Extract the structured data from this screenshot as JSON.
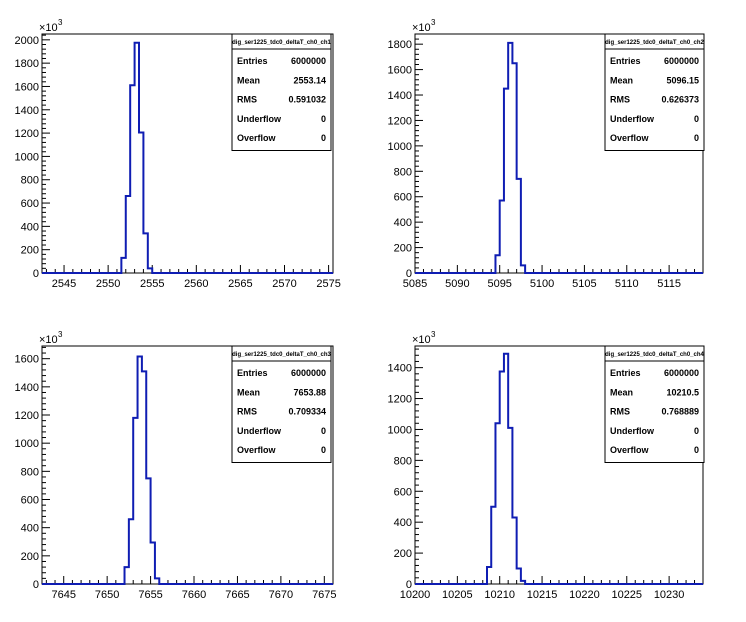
{
  "chart_data": [
    {
      "type": "histogram",
      "stats_title": "dig_ser1225_tdc0_deltaT_ch0_ch1",
      "stats": [
        {
          "label": "Entries",
          "value": "6000000"
        },
        {
          "label": "Mean",
          "value": "2553.14"
        },
        {
          "label": "RMS",
          "value": "0.591032"
        },
        {
          "label": "Underflow",
          "value": "0"
        },
        {
          "label": "Overflow",
          "value": "0"
        }
      ],
      "y_exponent_base": "×10",
      "y_exponent_power": "3",
      "xlim": [
        2542.5,
        2575.5
      ],
      "ylim": [
        0,
        2050
      ],
      "xticks": [
        2545,
        2550,
        2555,
        2560,
        2565,
        2570,
        2575
      ],
      "yticks": [
        0,
        200,
        400,
        600,
        800,
        1000,
        1200,
        1400,
        1600,
        1800,
        2000
      ],
      "bin_width": 0.5,
      "bins": [
        {
          "x0": 2551.5,
          "y": 130
        },
        {
          "x0": 2552.0,
          "y": 660
        },
        {
          "x0": 2552.5,
          "y": 1610
        },
        {
          "x0": 2553.0,
          "y": 1975
        },
        {
          "x0": 2553.5,
          "y": 1205
        },
        {
          "x0": 2554.0,
          "y": 340
        },
        {
          "x0": 2554.5,
          "y": 40
        }
      ]
    },
    {
      "type": "histogram",
      "stats_title": "dig_ser1225_tdc0_deltaT_ch0_ch2",
      "stats": [
        {
          "label": "Entries",
          "value": "6000000"
        },
        {
          "label": "Mean",
          "value": "5096.15"
        },
        {
          "label": "RMS",
          "value": "0.626373"
        },
        {
          "label": "Underflow",
          "value": "0"
        },
        {
          "label": "Overflow",
          "value": "0"
        }
      ],
      "y_exponent_base": "×10",
      "y_exponent_power": "3",
      "xlim": [
        5085,
        5119
      ],
      "ylim": [
        0,
        1880
      ],
      "xticks": [
        5085,
        5090,
        5095,
        5100,
        5105,
        5110,
        5115
      ],
      "yticks": [
        0,
        200,
        400,
        600,
        800,
        1000,
        1200,
        1400,
        1600,
        1800
      ],
      "bin_width": 0.5,
      "bins": [
        {
          "x0": 5094.5,
          "y": 140
        },
        {
          "x0": 5095.0,
          "y": 570
        },
        {
          "x0": 5095.5,
          "y": 1450
        },
        {
          "x0": 5096.0,
          "y": 1810
        },
        {
          "x0": 5096.5,
          "y": 1650
        },
        {
          "x0": 5097.0,
          "y": 740
        },
        {
          "x0": 5097.5,
          "y": 60
        }
      ]
    },
    {
      "type": "histogram",
      "stats_title": "dig_ser1225_tdc0_deltaT_ch0_ch3",
      "stats": [
        {
          "label": "Entries",
          "value": "6000000"
        },
        {
          "label": "Mean",
          "value": "7653.88"
        },
        {
          "label": "RMS",
          "value": "0.709334"
        },
        {
          "label": "Underflow",
          "value": "0"
        },
        {
          "label": "Overflow",
          "value": "0"
        }
      ],
      "y_exponent_base": "×10",
      "y_exponent_power": "3",
      "xlim": [
        7642.5,
        7676
      ],
      "ylim": [
        0,
        1690
      ],
      "xticks": [
        7645,
        7650,
        7655,
        7660,
        7665,
        7670,
        7675
      ],
      "yticks": [
        0,
        200,
        400,
        600,
        800,
        1000,
        1200,
        1400,
        1600
      ],
      "bin_width": 0.5,
      "bins": [
        {
          "x0": 7652.0,
          "y": 120
        },
        {
          "x0": 7652.5,
          "y": 460
        },
        {
          "x0": 7653.0,
          "y": 1180
        },
        {
          "x0": 7653.5,
          "y": 1615
        },
        {
          "x0": 7654.0,
          "y": 1510
        },
        {
          "x0": 7654.5,
          "y": 750
        },
        {
          "x0": 7655.0,
          "y": 295
        },
        {
          "x0": 7655.5,
          "y": 40
        }
      ]
    },
    {
      "type": "histogram",
      "stats_title": "dig_ser1225_tdc0_deltaT_ch0_ch4",
      "stats": [
        {
          "label": "Entries",
          "value": "6000000"
        },
        {
          "label": "Mean",
          "value": "10210.5"
        },
        {
          "label": "RMS",
          "value": "0.768889"
        },
        {
          "label": "Underflow",
          "value": "0"
        },
        {
          "label": "Overflow",
          "value": "0"
        }
      ],
      "y_exponent_base": "×10",
      "y_exponent_power": "3",
      "xlim": [
        10200,
        10234
      ],
      "ylim": [
        0,
        1540
      ],
      "xticks": [
        10200,
        10205,
        10210,
        10215,
        10220,
        10225,
        10230
      ],
      "yticks": [
        0,
        200,
        400,
        600,
        800,
        1000,
        1200,
        1400
      ],
      "bin_width": 0.5,
      "bins": [
        {
          "x0": 10208.5,
          "y": 110
        },
        {
          "x0": 10209.0,
          "y": 500
        },
        {
          "x0": 10209.5,
          "y": 1040
        },
        {
          "x0": 10210.0,
          "y": 1375
        },
        {
          "x0": 10210.5,
          "y": 1490
        },
        {
          "x0": 10211.0,
          "y": 1010
        },
        {
          "x0": 10211.5,
          "y": 430
        },
        {
          "x0": 10212.0,
          "y": 100
        },
        {
          "x0": 10212.5,
          "y": 20
        }
      ]
    }
  ],
  "colors": {
    "histogram_line": "#0f1db3",
    "axis": "#000000",
    "background": "#ffffff"
  }
}
